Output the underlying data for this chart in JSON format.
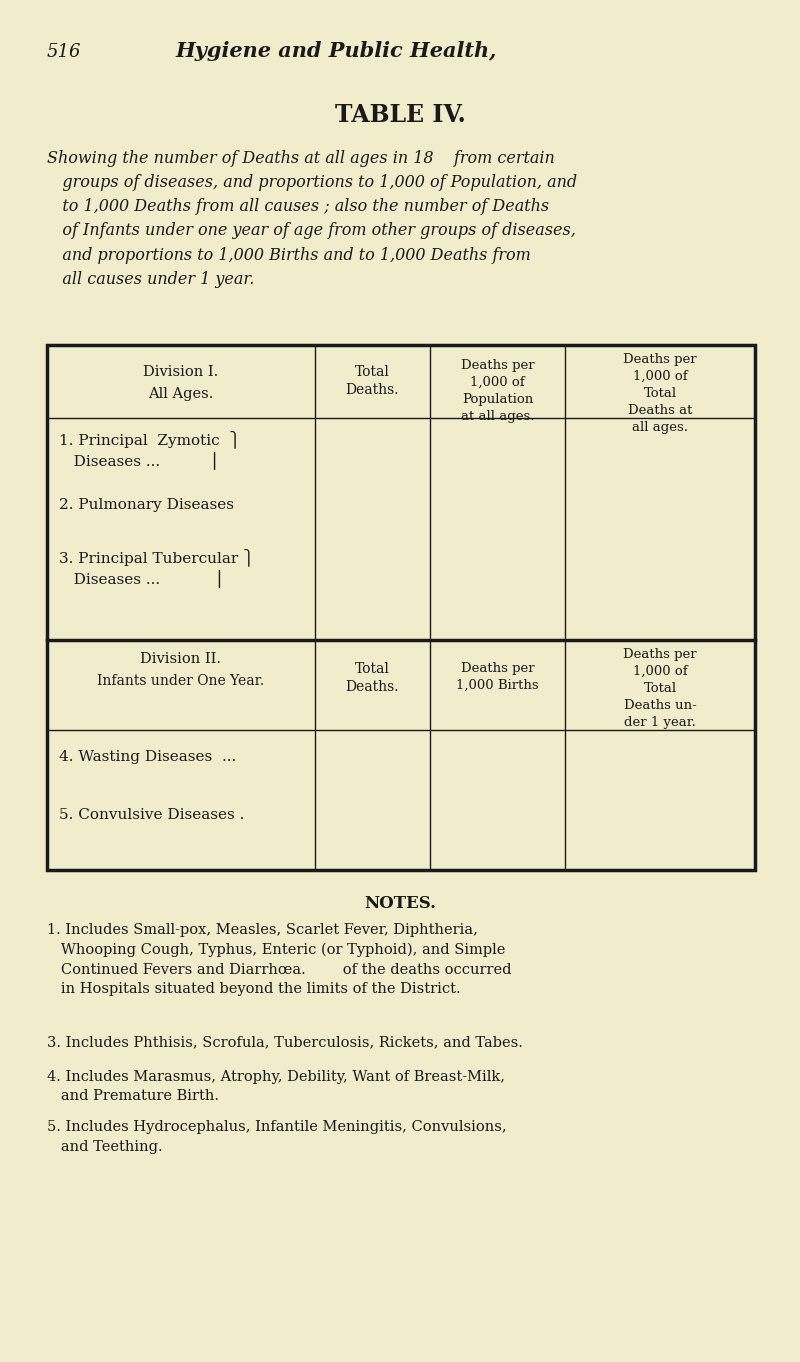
{
  "bg_color": "#f0eccc",
  "text_color": "#1a1a1a",
  "page_num": "516",
  "page_header": "Hygiene and Public Health,",
  "table_title": "TABLE IV.",
  "subtitle_lines": [
    "Showing the number of Deaths at all ages in 18  from certain",
    "groups of diseases, and proportions to 1,000 of Population, and",
    "to 1,000 Deaths from all causes ; also the number of Deaths",
    "of Infants under one year of age from other groups of diseases,",
    "and proportions to 1,000 Births and to 1,000 Deaths from",
    "all causes under 1 year."
  ],
  "div1_header": "Division I.",
  "div1_subheader": "All Ages.",
  "div1_col2": "Total\nDeaths.",
  "div1_col3": "Deaths per\n1,000 of\nPopulation\nat all ages.",
  "div1_col4": "Deaths per\n1,000 of\nTotal\nDeaths at\nall ages.",
  "div1_rows": [
    "1. Principal Zymotic {\n   Diseases ...         }",
    "2. Pulmonary Diseases",
    "3. Principal Tubercular {\n   Diseases ...          }"
  ],
  "div1_row1_line1": "1. Principal  Zymotic  ⎫",
  "div1_row1_line2": "   Diseases ...          ⎯",
  "div1_row2": "2. Pulmonary Diseases",
  "div1_row3_line1": "3. Principal Tubercular ⎫",
  "div1_row3_line2": "   Diseases ...           ⎯",
  "div2_header": "Division II.",
  "div2_subheader": "Infants under One Year.",
  "div2_col2": "Total\nDeaths.",
  "div2_col3": "Deaths per\n1,000 Births",
  "div2_col4": "Deaths per\n1,000 of\nTotal\nDeaths un-\nder 1 year.",
  "div2_row1": "4. Wasting Diseases  ...",
  "div2_row2": "5. Convulsive Diseases .",
  "notes_header": "NOTES.",
  "note1": "1. Includes Small-pox, Measles, Scarlet Fever, Diphtheria,\n   Whooping Cough, Typhus, Enteric (or Typhoid), and Simple\n   Continued Fevers and Diarrhœa.        of the deaths occurred\n   in Hospitals situated beyond the limits of the District.",
  "note3": "3. Includes Phthisis, Scrofula, Tuberculosis, Rickets, and Tabes.",
  "note4": "4. Includes Marasmus, Atrophy, Debility, Want of Breast-Milk,\n   and Premature Birth.",
  "note5": "5. Includes Hydrocephalus, Infantile Meningitis, Convulsions,\n   and Teething."
}
